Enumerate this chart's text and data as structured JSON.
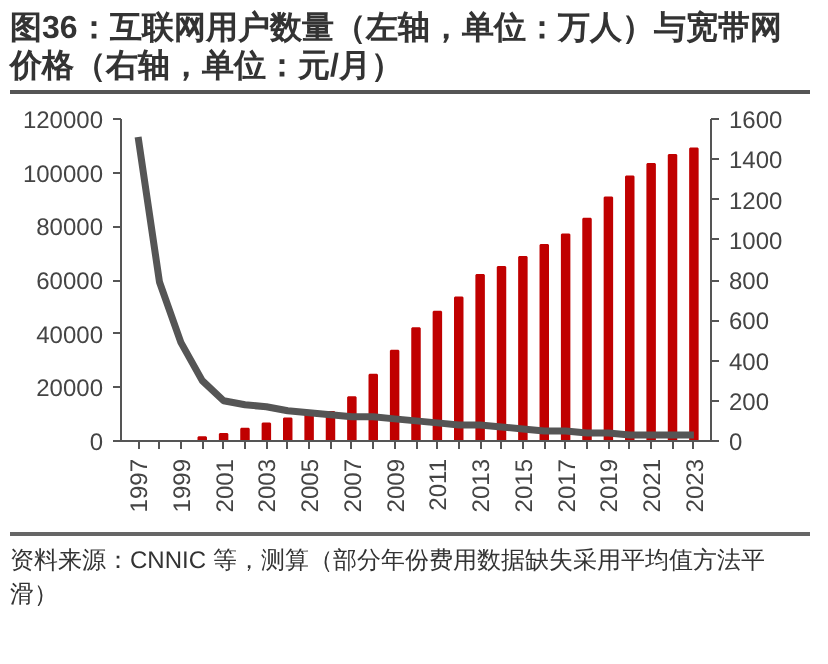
{
  "chart_data": {
    "type": "bar",
    "title": "图36：互联网用户数量（左轴，单位：万人）与宽带网价格（右轴，单位：元/月）",
    "annotations": [
      "资料来源：CNNIC 等，测算（部分年份费用数据缺失采用平均值方法平滑）"
    ],
    "categories": [
      "1997",
      null,
      "1999",
      null,
      "2001",
      null,
      "2003",
      null,
      "2005",
      null,
      "2007",
      null,
      "2009",
      null,
      "2011",
      null,
      "2013",
      null,
      "2015",
      null,
      "2017",
      null,
      "2019",
      null,
      "2021",
      null,
      "2023"
    ],
    "series": [
      {
        "color": "#c00000",
        "values": [
          0,
          0,
          0,
          1400,
          2600,
          4600,
          6500,
          8400,
          9800,
          10800,
          16300,
          24700,
          33600,
          42000,
          48200,
          53500,
          61900,
          64800,
          68600,
          73000,
          77000,
          82800,
          90700,
          98600,
          103200,
          106600,
          109000
        ]
      },
      {
        "type": "line",
        "axis": "y2",
        "color": "#555555",
        "values": [
          1510,
          790,
          490,
          300,
          200,
          180,
          170,
          150,
          140,
          130,
          120,
          120,
          110,
          100,
          90,
          80,
          80,
          70,
          60,
          50,
          50,
          40,
          40,
          30,
          30,
          30,
          30
        ]
      }
    ],
    "ylim": [
      0,
      120000
    ],
    "yticks": [
      0,
      20000,
      40000,
      60000,
      80000,
      100000,
      120000
    ],
    "y2lim": [
      0,
      1600
    ],
    "y2ticks": [
      0,
      200,
      400,
      600,
      800,
      1000,
      1200,
      1400,
      1600
    ],
    "grid": false
  }
}
